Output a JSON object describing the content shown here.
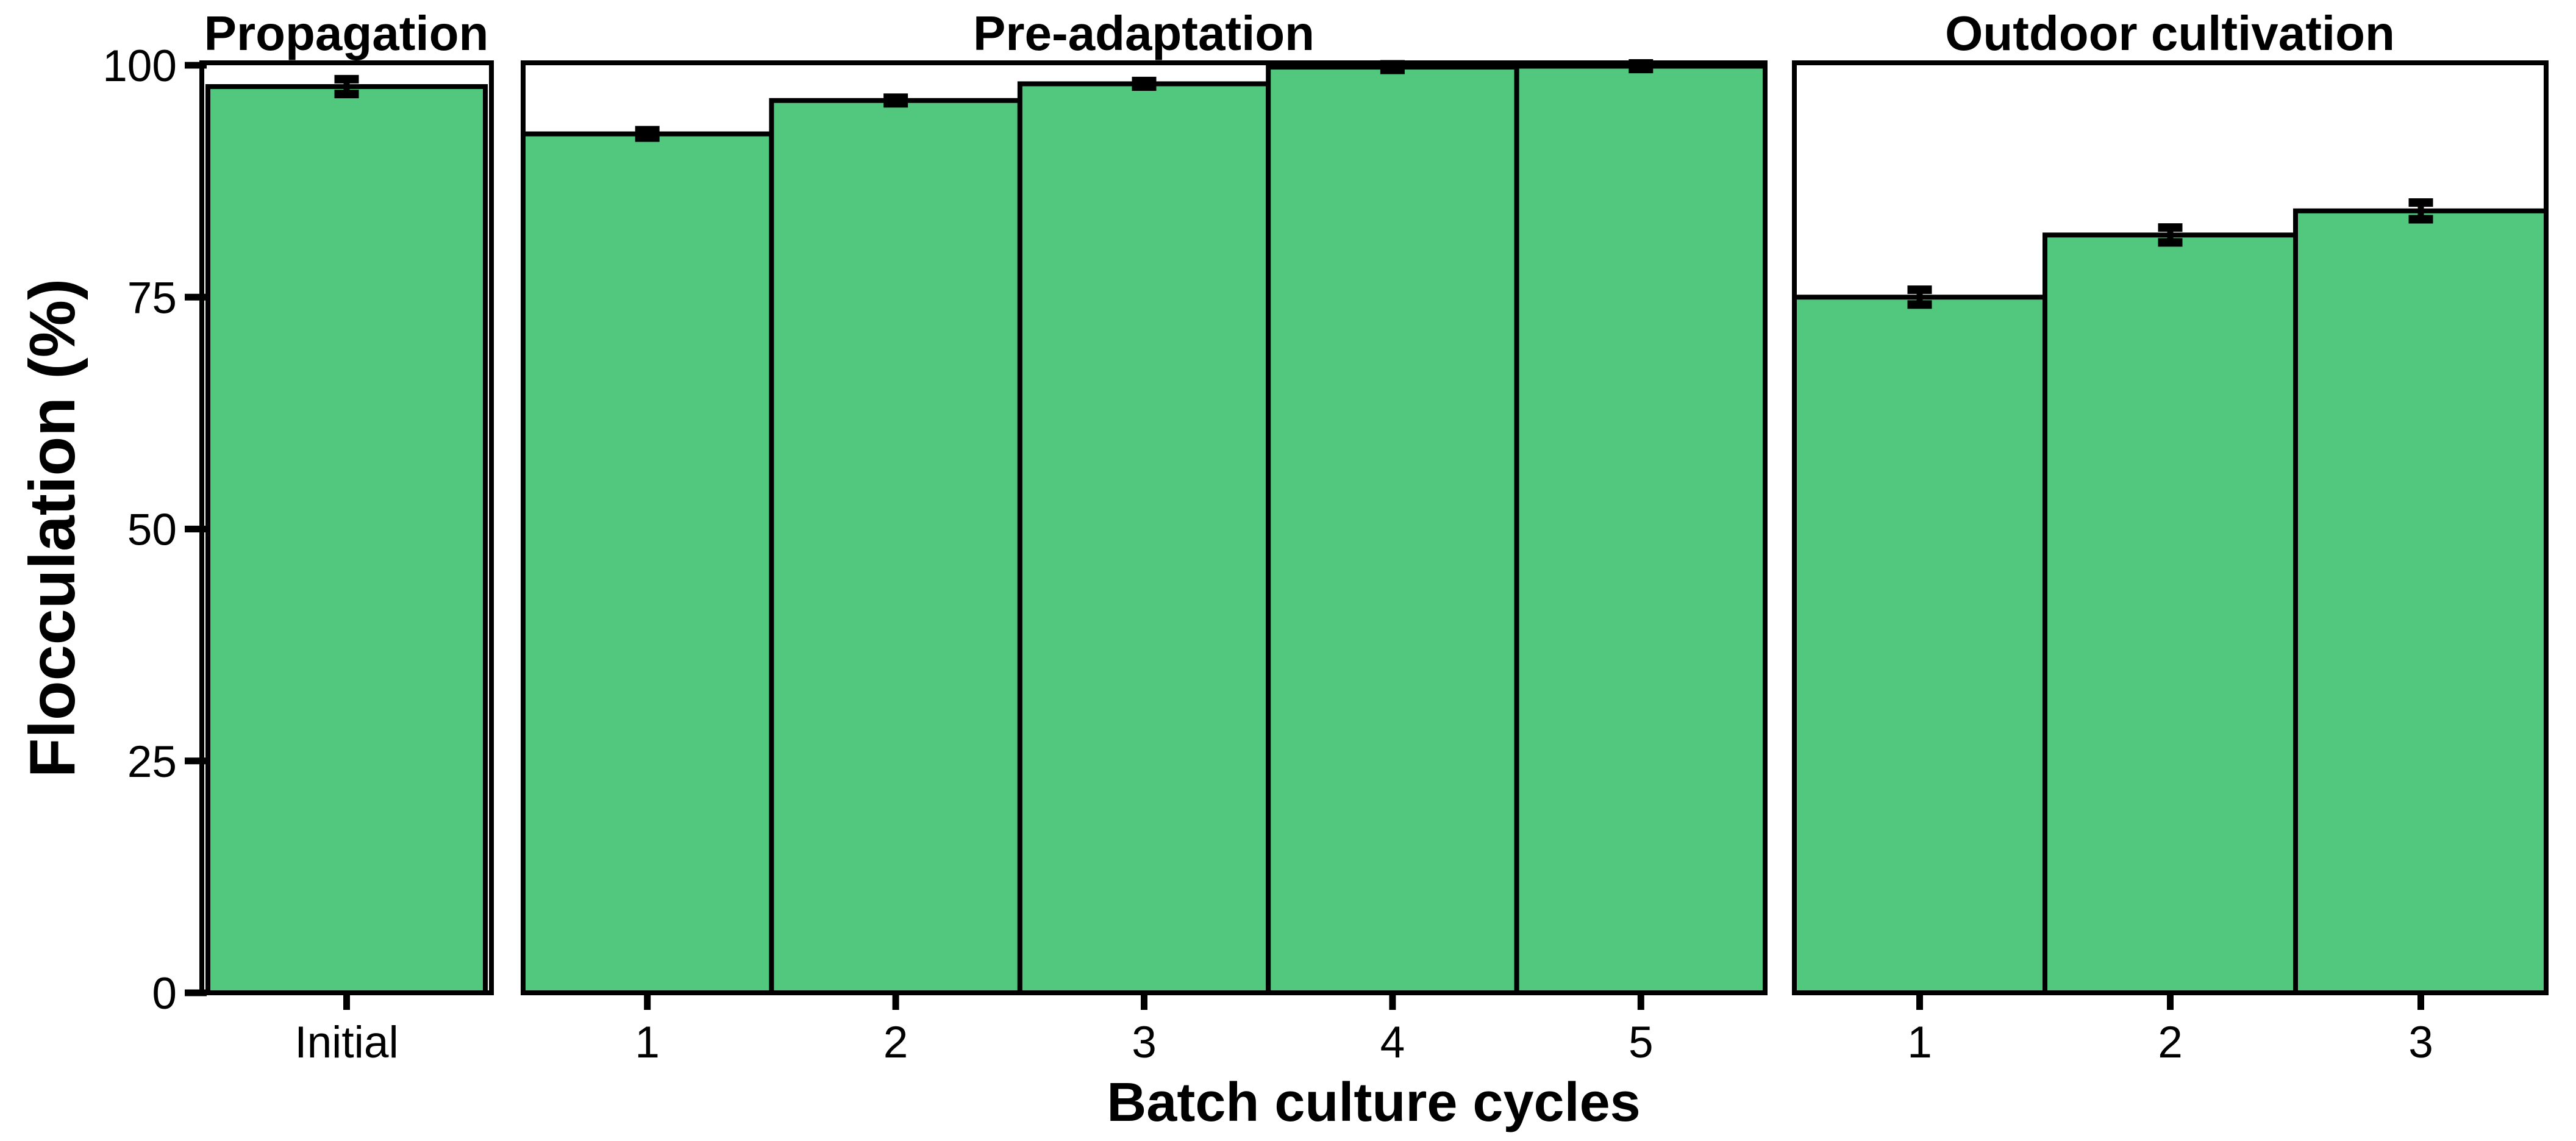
{
  "chart_data": {
    "type": "bar",
    "xlabel": "Batch culture cycles",
    "ylabel": "Flocculation (%)",
    "ylim": [
      0,
      100
    ],
    "yticks": [
      0,
      25,
      50,
      75,
      100
    ],
    "grid": false,
    "bar_fill_color": "#52c77e",
    "bar_edge_color": "#000000",
    "error_bar_color": "#000000",
    "panels": [
      {
        "title": "Propagation",
        "categories": [
          "Initial"
        ],
        "values": [
          97.7
        ],
        "errors": [
          0.8
        ]
      },
      {
        "title": "Pre-adaptation",
        "categories": [
          "1",
          "2",
          "3",
          "4",
          "5"
        ],
        "values": [
          92.6,
          96.2,
          98.0,
          99.8,
          99.9
        ],
        "errors": [
          0.4,
          0.3,
          0.3,
          0.3,
          0.3
        ]
      },
      {
        "title": "Outdoor cultivation",
        "categories": [
          "1",
          "2",
          "3"
        ],
        "values": [
          75.0,
          81.7,
          84.3
        ],
        "errors": [
          0.8,
          0.8,
          0.9
        ]
      }
    ]
  }
}
